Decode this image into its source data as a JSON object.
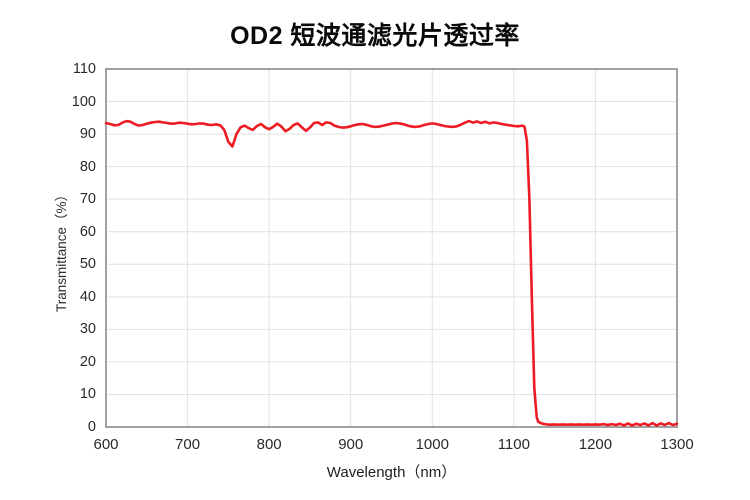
{
  "chart_data": {
    "type": "line",
    "title": "OD2 短波通滤光片透过率",
    "xlabel": "Wavelength（nm）",
    "ylabel": "Transmittance（%）",
    "xlim": [
      600,
      1300
    ],
    "ylim": [
      0,
      110
    ],
    "x_ticks": [
      600,
      700,
      800,
      900,
      1000,
      1100,
      1200,
      1300
    ],
    "y_ticks": [
      0,
      10,
      20,
      30,
      40,
      50,
      60,
      70,
      80,
      90,
      100,
      110
    ],
    "grid": true,
    "legend": "none",
    "line_color": "#ed1c24",
    "series": [
      {
        "name": "transmittance",
        "x": [
          600,
          605,
          610,
          615,
          620,
          625,
          630,
          635,
          640,
          645,
          650,
          655,
          660,
          665,
          670,
          675,
          680,
          685,
          690,
          695,
          700,
          705,
          710,
          715,
          720,
          725,
          730,
          735,
          740,
          745,
          750,
          755,
          760,
          765,
          770,
          775,
          780,
          785,
          790,
          795,
          800,
          805,
          810,
          815,
          820,
          825,
          830,
          835,
          840,
          845,
          850,
          855,
          860,
          865,
          870,
          875,
          880,
          885,
          890,
          895,
          900,
          905,
          910,
          915,
          920,
          925,
          930,
          935,
          940,
          945,
          950,
          955,
          960,
          965,
          970,
          975,
          980,
          985,
          990,
          995,
          1000,
          1005,
          1010,
          1015,
          1020,
          1025,
          1030,
          1035,
          1040,
          1045,
          1050,
          1055,
          1060,
          1065,
          1070,
          1075,
          1080,
          1085,
          1090,
          1095,
          1100,
          1105,
          1110,
          1113,
          1116,
          1119,
          1122,
          1125,
          1128,
          1130,
          1135,
          1140,
          1145,
          1150,
          1155,
          1160,
          1165,
          1170,
          1175,
          1180,
          1185,
          1190,
          1195,
          1200,
          1205,
          1210,
          1215,
          1220,
          1225,
          1230,
          1235,
          1240,
          1245,
          1250,
          1255,
          1260,
          1265,
          1270,
          1275,
          1280,
          1285,
          1290,
          1295,
          1300
        ],
        "values": [
          93.4,
          93.1,
          92.7,
          92.8,
          93.5,
          94.0,
          93.8,
          93.1,
          92.6,
          92.8,
          93.2,
          93.5,
          93.7,
          93.8,
          93.6,
          93.4,
          93.2,
          93.3,
          93.5,
          93.4,
          93.2,
          93.0,
          93.1,
          93.3,
          93.2,
          92.9,
          92.8,
          93.0,
          92.7,
          91.3,
          87.6,
          86.2,
          90.0,
          92.1,
          92.6,
          91.8,
          91.3,
          92.5,
          93.1,
          92.1,
          91.5,
          92.2,
          93.2,
          92.3,
          90.9,
          91.6,
          92.8,
          93.3,
          92.1,
          91.0,
          92.0,
          93.4,
          93.6,
          92.8,
          93.6,
          93.4,
          92.6,
          92.2,
          92.0,
          92.1,
          92.4,
          92.8,
          93.0,
          93.1,
          92.8,
          92.4,
          92.2,
          92.3,
          92.6,
          92.9,
          93.2,
          93.4,
          93.3,
          93.0,
          92.6,
          92.3,
          92.2,
          92.4,
          92.8,
          93.1,
          93.3,
          93.1,
          92.8,
          92.5,
          92.3,
          92.2,
          92.4,
          92.9,
          93.5,
          94.0,
          93.5,
          93.9,
          93.4,
          93.8,
          93.3,
          93.6,
          93.4,
          93.1,
          92.9,
          92.7,
          92.5,
          92.4,
          92.6,
          92.3,
          88.0,
          70.0,
          40.0,
          12.0,
          3.0,
          1.6,
          1.0,
          0.8,
          0.7,
          0.8,
          0.7,
          0.8,
          0.7,
          0.8,
          0.7,
          0.8,
          0.7,
          0.8,
          0.7,
          0.8,
          0.7,
          0.9,
          0.6,
          0.9,
          0.6,
          1.0,
          0.5,
          1.1,
          0.5,
          1.0,
          0.6,
          1.1,
          0.5,
          1.2,
          0.5,
          1.1,
          0.6,
          1.2,
          0.6,
          1.0
        ]
      }
    ]
  },
  "colors": {
    "line": "#ed1c24",
    "grid": "#e2e2e2",
    "border": "#8a8a8a",
    "tick_text": "#2a2a2a",
    "title_text": "#0a0a0a",
    "background": "#ffffff"
  }
}
